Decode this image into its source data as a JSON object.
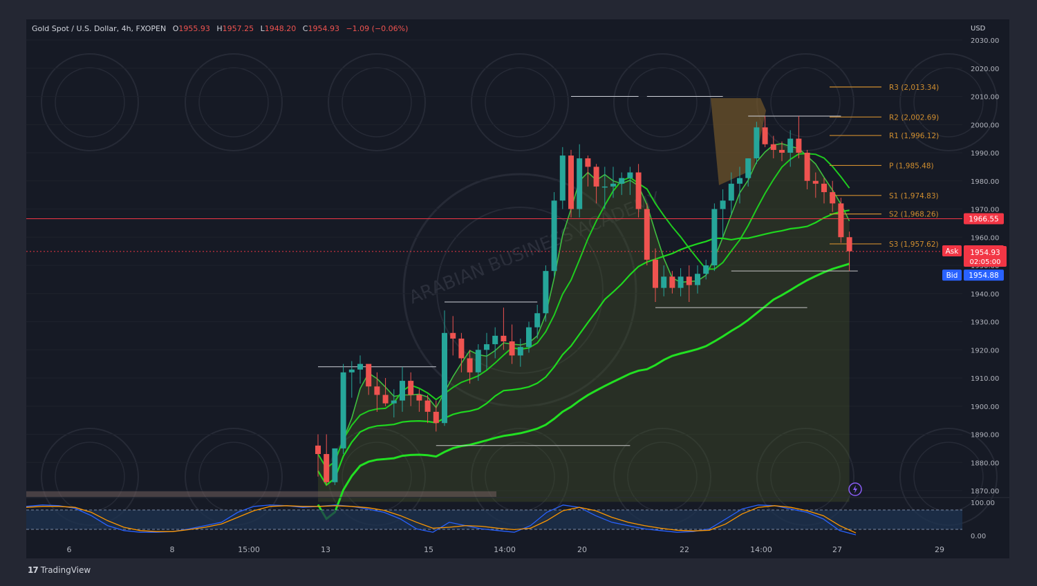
{
  "header": {
    "symbol": "Gold Spot / U.S. Dollar, 4h, FXOPEN",
    "open_label": "O",
    "open": "1955.93",
    "high_label": "H",
    "high": "1957.25",
    "low_label": "L",
    "low": "1948.20",
    "close_label": "C",
    "close": "1954.93",
    "change": "−1.09 (−0.06%)"
  },
  "currency": "USD",
  "price_axis": {
    "ticks": [
      "2030.00",
      "2020.00",
      "2010.00",
      "2000.00",
      "1990.00",
      "1980.00",
      "1970.00",
      "1960.00",
      "1950.00",
      "1940.00",
      "1930.00",
      "1920.00",
      "1910.00",
      "1900.00",
      "1890.00",
      "1880.00",
      "1870.00"
    ]
  },
  "time_axis": {
    "labels": [
      "6",
      "8",
      "15:00",
      "13",
      "15",
      "14:00",
      "20",
      "22",
      "14:00",
      "27",
      "29"
    ]
  },
  "oscillator_axis": {
    "labels": [
      "100.00",
      "0.00"
    ]
  },
  "markers": {
    "level": "1966.55",
    "ask_label": "Ask",
    "ask": "1955.16",
    "last": "1954.93",
    "countdown": "02:05:00",
    "bid_label": "Bid",
    "bid": "1954.88"
  },
  "pivots": [
    {
      "label": "R3 (2,013.34)",
      "value": 2013.34
    },
    {
      "label": "R2 (2,002.69)",
      "value": 2002.69
    },
    {
      "label": "R1 (1,996.12)",
      "value": 1996.12
    },
    {
      "label": "P (1,985.48)",
      "value": 1985.48
    },
    {
      "label": "S1 (1,974.83)",
      "value": 1974.83
    },
    {
      "label": "S2 (1,968.26)",
      "value": 1968.26
    },
    {
      "label": "S3 (1,957.62)",
      "value": 1957.62
    }
  ],
  "watermark": "ARABIAN BUSINESS ACADEMY",
  "brand": "TradingView",
  "colors": {
    "up": "#26a69a",
    "down": "#ef5350",
    "ma": "#22dd22",
    "pivot": "#d08e2f",
    "bid": "#2962ff",
    "background": "#161a25"
  },
  "chart_data": {
    "type": "candlestick",
    "timeframe": "4h",
    "ylim": [
      1866,
      2034
    ],
    "candles": [
      [
        1886,
        1890,
        1875,
        1883
      ],
      [
        1883,
        1890,
        1872,
        1873
      ],
      [
        1873,
        1885,
        1872,
        1885
      ],
      [
        1885,
        1915,
        1883,
        1912
      ],
      [
        1912,
        1916,
        1903,
        1913
      ],
      [
        1913,
        1918,
        1908,
        1915
      ],
      [
        1915,
        1914,
        1904,
        1907
      ],
      [
        1907,
        1912,
        1898,
        1904
      ],
      [
        1904,
        1910,
        1900,
        1901
      ],
      [
        1901,
        1906,
        1896,
        1902
      ],
      [
        1902,
        1914,
        1898,
        1909
      ],
      [
        1909,
        1912,
        1900,
        1904
      ],
      [
        1904,
        1906,
        1898,
        1902
      ],
      [
        1902,
        1904,
        1894,
        1898
      ],
      [
        1898,
        1902,
        1891,
        1894
      ],
      [
        1894,
        1934,
        1893,
        1926
      ],
      [
        1926,
        1932,
        1918,
        1924
      ],
      [
        1924,
        1926,
        1912,
        1917
      ],
      [
        1917,
        1920,
        1908,
        1912
      ],
      [
        1912,
        1922,
        1909,
        1920
      ],
      [
        1920,
        1926,
        1913,
        1922
      ],
      [
        1922,
        1928,
        1917,
        1925
      ],
      [
        1925,
        1935,
        1920,
        1923
      ],
      [
        1923,
        1929,
        1915,
        1918
      ],
      [
        1918,
        1924,
        1914,
        1921
      ],
      [
        1921,
        1930,
        1919,
        1928
      ],
      [
        1928,
        1936,
        1924,
        1933
      ],
      [
        1933,
        1950,
        1930,
        1948
      ],
      [
        1948,
        1976,
        1946,
        1973
      ],
      [
        1973,
        1992,
        1970,
        1989
      ],
      [
        1989,
        1991,
        1967,
        1970
      ],
      [
        1970,
        1993,
        1967,
        1988
      ],
      [
        1988,
        1989,
        1978,
        1985
      ],
      [
        1985,
        1986,
        1972,
        1978
      ],
      [
        1978,
        1985,
        1970,
        1978
      ],
      [
        1978,
        1985,
        1974,
        1979
      ],
      [
        1979,
        1983,
        1975,
        1981
      ],
      [
        1981,
        1985,
        1975,
        1983
      ],
      [
        1983,
        1986,
        1967,
        1970
      ],
      [
        1970,
        1972,
        1950,
        1952
      ],
      [
        1952,
        1956,
        1937,
        1942
      ],
      [
        1942,
        1950,
        1939,
        1946
      ],
      [
        1946,
        1948,
        1940,
        1942
      ],
      [
        1942,
        1949,
        1939,
        1946
      ],
      [
        1946,
        1950,
        1937,
        1943
      ],
      [
        1943,
        1950,
        1940,
        1947
      ],
      [
        1947,
        1952,
        1945,
        1950
      ],
      [
        1950,
        1972,
        1948,
        1970
      ],
      [
        1970,
        1977,
        1960,
        1973
      ],
      [
        1973,
        1983,
        1968,
        1979
      ],
      [
        1979,
        1985,
        1972,
        1981
      ],
      [
        1981,
        1988,
        1978,
        1988
      ],
      [
        1988,
        2001,
        1986,
        1999
      ],
      [
        1999,
        2003,
        1992,
        1993
      ],
      [
        1993,
        1996,
        1988,
        1991
      ],
      [
        1991,
        1994,
        1987,
        1990
      ],
      [
        1990,
        1998,
        1985,
        1995
      ],
      [
        1995,
        2003,
        1988,
        1990
      ],
      [
        1990,
        1991,
        1977,
        1980
      ],
      [
        1980,
        1983,
        1974,
        1979
      ],
      [
        1979,
        1981,
        1972,
        1976
      ],
      [
        1976,
        1980,
        1969,
        1972
      ],
      [
        1972,
        1974,
        1958,
        1960
      ],
      [
        1960,
        1962,
        1948,
        1955
      ]
    ],
    "level_line": 1966.55,
    "last_price": 1954.93,
    "oscillator": {
      "range": [
        0,
        100
      ],
      "blue": [
        88,
        92,
        90,
        82,
        60,
        30,
        15,
        10,
        10,
        12,
        20,
        30,
        40,
        70,
        88,
        92,
        90,
        85,
        88,
        92,
        88,
        80,
        70,
        50,
        20,
        10,
        40,
        30,
        20,
        15,
        10,
        30,
        70,
        92,
        85,
        60,
        40,
        30,
        20,
        15,
        10,
        12,
        20,
        50,
        80,
        92,
        90,
        80,
        70,
        50,
        15,
        2
      ],
      "orange": [
        85,
        88,
        88,
        85,
        70,
        45,
        25,
        15,
        12,
        12,
        18,
        25,
        35,
        55,
        75,
        88,
        90,
        88,
        88,
        90,
        88,
        84,
        76,
        60,
        40,
        22,
        25,
        30,
        28,
        22,
        18,
        22,
        45,
        75,
        85,
        75,
        55,
        40,
        30,
        22,
        16,
        14,
        16,
        35,
        65,
        85,
        90,
        85,
        75,
        60,
        30,
        8
      ]
    }
  }
}
